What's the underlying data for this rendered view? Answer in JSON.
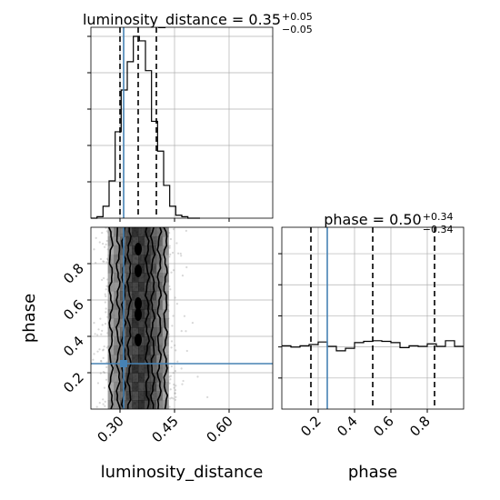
{
  "chart_data": [
    {
      "type": "histogram",
      "panel": "luminosity_distance-marginal",
      "parameter": "luminosity_distance",
      "title": {
        "main": "luminosity_distance = 0.35",
        "sup": "+0.05",
        "sub": "−0.05"
      },
      "xlim": [
        0.22,
        0.72
      ],
      "bin_edges": [
        0.22,
        0.2367,
        0.2533,
        0.27,
        0.2867,
        0.3033,
        0.32,
        0.3367,
        0.3533,
        0.37,
        0.3867,
        0.4033,
        0.42,
        0.4367,
        0.4533,
        0.47,
        0.4867,
        0.5033,
        0.52
      ],
      "counts": [
        0,
        1,
        8,
        25,
        58,
        86,
        105,
        122,
        119,
        99,
        65,
        45,
        22,
        8,
        2,
        1,
        0,
        0
      ],
      "quantiles": [
        0.3,
        0.35,
        0.4
      ],
      "truth": 0.31,
      "yticks_count": 5
    },
    {
      "type": "histogram",
      "panel": "phase-marginal",
      "parameter": "phase",
      "title": {
        "main": "phase = 0.50",
        "sup": "+0.34",
        "sub": "−0.34"
      },
      "xlim": [
        0,
        1
      ],
      "bin_edges": [
        0,
        0.05,
        0.1,
        0.15,
        0.2,
        0.25,
        0.3,
        0.35,
        0.4,
        0.45,
        0.5,
        0.55,
        0.6,
        0.65,
        0.7,
        0.75,
        0.8,
        0.85,
        0.9,
        0.95,
        1.0
      ],
      "counts": [
        1.01,
        0.99,
        1.01,
        1.03,
        1.07,
        1.0,
        0.93,
        0.97,
        1.06,
        1.08,
        1.09,
        1.08,
        1.06,
        0.98,
        1.01,
        1.0,
        1.04,
        1.0,
        1.09,
        1.0
      ],
      "quantiles": [
        0.16,
        0.5,
        0.84
      ],
      "truth": 0.25,
      "xticks": [
        "0.2",
        "0.4",
        "0.6",
        "0.8"
      ],
      "xtick_values": [
        0.2,
        0.4,
        0.6,
        0.8
      ],
      "xlabel": "phase",
      "yticks_count": 5
    },
    {
      "type": "2d-density",
      "panel": "luminosity_distance-vs-phase",
      "x_parameter": "luminosity_distance",
      "y_parameter": "phase",
      "xlim": [
        0.22,
        0.72
      ],
      "ylim": [
        0,
        1
      ],
      "xticks": [
        "0.30",
        "0.45",
        "0.60"
      ],
      "xtick_values": [
        0.3,
        0.45,
        0.6
      ],
      "yticks": [
        "0.2",
        "0.4",
        "0.6",
        "0.8"
      ],
      "ytick_values": [
        0.2,
        0.4,
        0.6,
        0.8
      ],
      "xlabel": "luminosity_distance",
      "ylabel": "phase",
      "truth": [
        0.31,
        0.25
      ],
      "center": 0.35,
      "spread": 0.05
    }
  ],
  "colors": {
    "truth": "#4682b4",
    "line": "#000000",
    "grid": "#b0b0b0"
  }
}
